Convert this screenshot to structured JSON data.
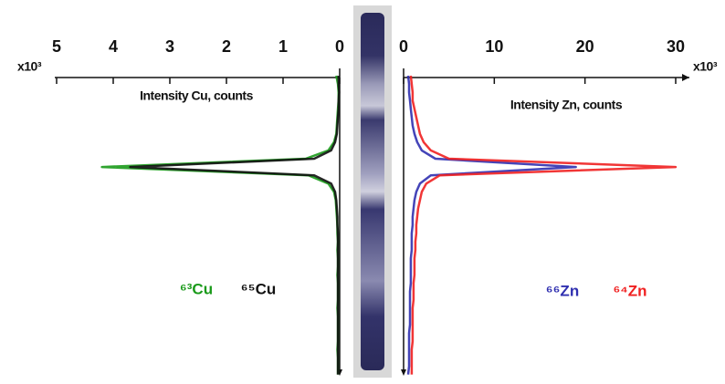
{
  "chart_data": [
    {
      "type": "line",
      "xlabel": "Intensity Cu, counts",
      "multiplier": "x10³",
      "xlim": [
        0,
        5
      ],
      "x_reversed": true,
      "xticks": [
        5,
        4,
        3,
        2,
        1,
        0
      ],
      "series": [
        {
          "name": "⁶³Cu",
          "color": "#1a9a1a",
          "values": [
            0.06,
            0.03,
            0.02,
            0.02,
            0.03,
            0.04,
            0.05,
            0.06,
            0.1,
            0.2,
            0.6,
            4.2,
            0.55,
            0.2,
            0.1,
            0.07,
            0.06,
            0.05,
            0.04,
            0.04,
            0.03,
            0.04,
            0.03,
            0.03,
            0.04,
            0.03,
            0.03,
            0.03,
            0.04,
            0.03,
            0.03,
            0.03,
            0.03,
            0.04,
            0.03,
            0.03,
            0.03
          ]
        },
        {
          "name": "⁶⁵Cu",
          "color": "#111111",
          "values": [
            0.02,
            0.02,
            0.01,
            0.02,
            0.02,
            0.03,
            0.04,
            0.05,
            0.08,
            0.15,
            0.45,
            3.7,
            0.45,
            0.15,
            0.08,
            0.06,
            0.05,
            0.04,
            0.04,
            0.03,
            0.03,
            0.03,
            0.03,
            0.03,
            0.03,
            0.03,
            0.03,
            0.03,
            0.03,
            0.03,
            0.03,
            0.03,
            0.03,
            0.03,
            0.03,
            0.03,
            0.03
          ]
        }
      ]
    },
    {
      "type": "line",
      "xlabel": "Intensity Zn, counts",
      "multiplier": "x10³",
      "xlim": [
        0,
        30
      ],
      "x_reversed": false,
      "xticks": [
        0,
        10,
        20,
        30
      ],
      "series": [
        {
          "name": "⁶⁶Zn",
          "color": "#3030b0",
          "values": [
            0.5,
            0.6,
            0.6,
            0.7,
            0.8,
            0.9,
            1.0,
            1.2,
            1.5,
            2.0,
            3.5,
            19,
            3.0,
            1.8,
            1.4,
            1.2,
            1.1,
            1.0,
            1.0,
            0.9,
            0.9,
            0.9,
            0.8,
            0.8,
            0.8,
            0.8,
            0.7,
            0.7,
            0.7,
            0.7,
            0.7,
            0.6,
            0.6,
            0.6,
            0.6,
            0.6,
            0.5
          ]
        },
        {
          "name": "⁶⁴Zn",
          "color": "#f02020",
          "values": [
            0.8,
            0.9,
            1.0,
            1.0,
            1.2,
            1.4,
            1.6,
            1.8,
            2.2,
            3.0,
            5.0,
            30,
            4.0,
            2.5,
            2.0,
            1.8,
            1.6,
            1.5,
            1.4,
            1.4,
            1.3,
            1.3,
            1.2,
            1.2,
            1.2,
            1.1,
            1.1,
            1.1,
            1.0,
            1.0,
            1.0,
            1.0,
            1.0,
            0.9,
            0.9,
            0.9,
            0.9
          ]
        }
      ]
    }
  ]
}
